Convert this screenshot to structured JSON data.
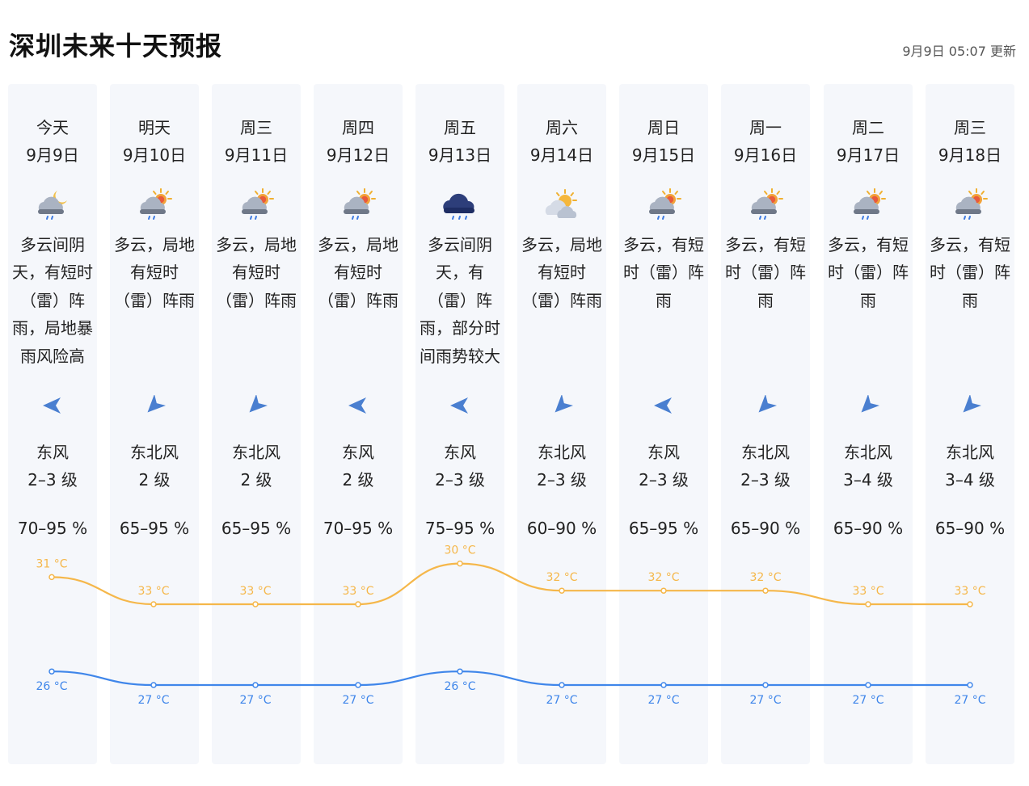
{
  "header": {
    "title": "深圳未来十天预报",
    "updated": "9月9日 05:07 更新"
  },
  "colors": {
    "high": "#f5b74a",
    "low": "#3f86ea",
    "card": "#f5f7fb",
    "arrow": "#4a7fd0"
  },
  "days": [
    {
      "name": "今天",
      "date": "9月9日",
      "icon": "cloud-moon-rain-icon",
      "desc": "多云间阴天，有短时（雷）阵雨，局地暴雨风险高",
      "wind_dir": "东风",
      "wind_level": "2–3 级",
      "humidity": "70–95 %",
      "high": "31 °C",
      "low": "26 °C"
    },
    {
      "name": "明天",
      "date": "9月10日",
      "icon": "cloud-sun-rain-icon",
      "desc": "多云，局地有短时（雷）阵雨",
      "wind_dir": "东北风",
      "wind_level": "2 级",
      "humidity": "65–95 %",
      "high": "33 °C",
      "low": "27 °C"
    },
    {
      "name": "周三",
      "date": "9月11日",
      "icon": "cloud-sun-rain-icon",
      "desc": "多云，局地有短时（雷）阵雨",
      "wind_dir": "东北风",
      "wind_level": "2 级",
      "humidity": "65–95 %",
      "high": "33 °C",
      "low": "27 °C"
    },
    {
      "name": "周四",
      "date": "9月12日",
      "icon": "cloud-sun-rain-icon",
      "desc": "多云，局地有短时（雷）阵雨",
      "wind_dir": "东风",
      "wind_level": "2 级",
      "humidity": "70–95 %",
      "high": "33 °C",
      "low": "27 °C"
    },
    {
      "name": "周五",
      "date": "9月13日",
      "icon": "dark-cloud-rain-icon",
      "desc": "多云间阴天，有（雷）阵雨，部分时间雨势较大",
      "wind_dir": "东风",
      "wind_level": "2–3 级",
      "humidity": "75–95 %",
      "high": "30 °C",
      "low": "26 °C"
    },
    {
      "name": "周六",
      "date": "9月14日",
      "icon": "sun-cloud-icon",
      "desc": "多云，局地有短时（雷）阵雨",
      "wind_dir": "东北风",
      "wind_level": "2–3 级",
      "humidity": "60–90 %",
      "high": "32 °C",
      "low": "27 °C"
    },
    {
      "name": "周日",
      "date": "9月15日",
      "icon": "cloud-sun-rain-icon",
      "desc": "多云，有短时（雷）阵雨",
      "wind_dir": "东风",
      "wind_level": "2–3 级",
      "humidity": "65–95 %",
      "high": "32 °C",
      "low": "27 °C"
    },
    {
      "name": "周一",
      "date": "9月16日",
      "icon": "cloud-sun-rain-icon",
      "desc": "多云，有短时（雷）阵雨",
      "wind_dir": "东北风",
      "wind_level": "2–3 级",
      "humidity": "65–90 %",
      "high": "32 °C",
      "low": "27 °C"
    },
    {
      "name": "周二",
      "date": "9月17日",
      "icon": "cloud-sun-rain-icon",
      "desc": "多云，有短时（雷）阵雨",
      "wind_dir": "东北风",
      "wind_level": "3–4 级",
      "humidity": "65–90 %",
      "high": "33 °C",
      "low": "27 °C"
    },
    {
      "name": "周三",
      "date": "9月18日",
      "icon": "cloud-sun-rain-icon",
      "desc": "多云，有短时（雷）阵雨",
      "wind_dir": "东北风",
      "wind_level": "3–4 级",
      "humidity": "65–90 %",
      "high": "33 °C",
      "low": "27 °C"
    }
  ],
  "chart_data": {
    "type": "line",
    "categories": [
      "9月9日",
      "9月10日",
      "9月11日",
      "9月12日",
      "9月13日",
      "9月14日",
      "9月15日",
      "9月16日",
      "9月17日",
      "9月18日"
    ],
    "series": [
      {
        "values": [
          31,
          33,
          33,
          33,
          30,
          32,
          32,
          32,
          33,
          33
        ]
      },
      {
        "values": [
          26,
          27,
          27,
          27,
          26,
          27,
          27,
          27,
          27,
          27
        ]
      }
    ],
    "unit": "°C",
    "grid": false
  }
}
